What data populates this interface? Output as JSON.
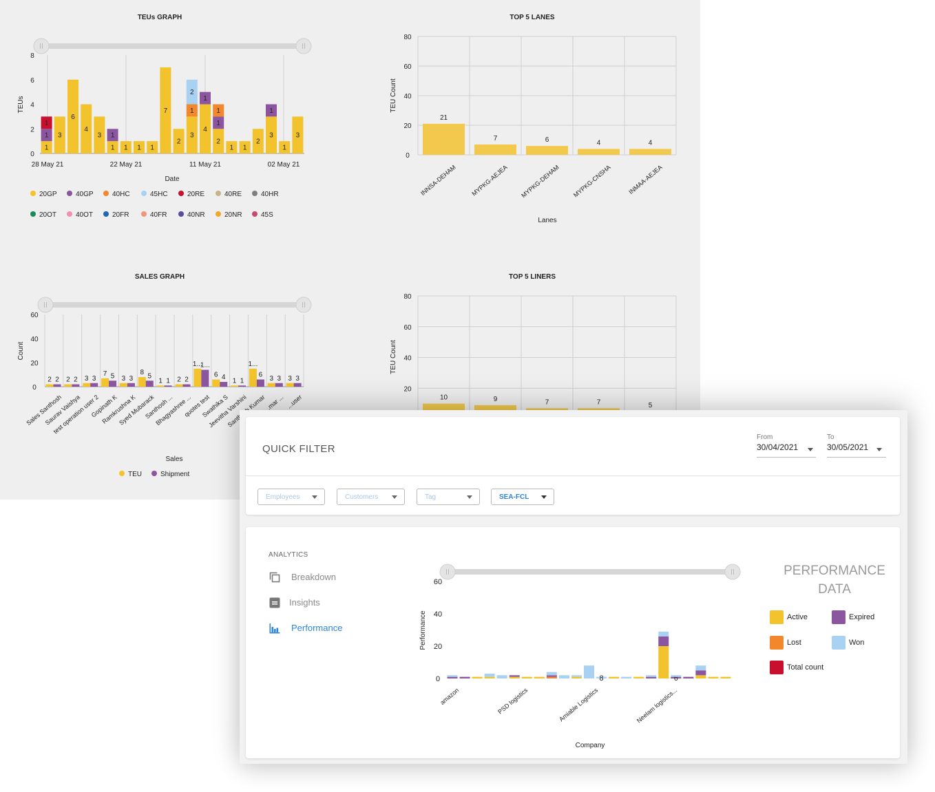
{
  "dashboard": {
    "teus_chart": {
      "title": "TEUs GRAPH",
      "xlabel": "Date",
      "ylabel": "TEUs",
      "yticks": [
        "0",
        "2",
        "4",
        "6",
        "8"
      ],
      "date_labels": [
        "28 May 21",
        "22 May 21",
        "11 May 21",
        "02 May 21"
      ],
      "legend_row1": [
        "20GP",
        "40GP",
        "40HC",
        "45HC",
        "20RE",
        "40RE",
        "40HR"
      ],
      "legend_row2": [
        "20OT",
        "40OT",
        "20FR",
        "40FR",
        "40NR",
        "20NR",
        "45S"
      ]
    },
    "lanes_chart": {
      "title": "TOP 5 LANES",
      "xlabel": "Lanes",
      "ylabel": "TEU Count",
      "yticks": [
        "0",
        "20",
        "40",
        "60",
        "80"
      ]
    },
    "sales_chart": {
      "title": "SALES GRAPH",
      "xlabel": "Sales",
      "ylabel": "Count",
      "yticks": [
        "0",
        "20",
        "40",
        "60"
      ],
      "legend": [
        "TEU",
        "Shipment"
      ]
    },
    "liners_chart": {
      "title": "TOP 5 LINERS",
      "ylabel": "TEU Count",
      "yticks": [
        "20",
        "40",
        "60",
        "80"
      ]
    }
  },
  "quick_filter": {
    "title": "QUICK FILTER",
    "from_label": "From",
    "from_value": "30/04/2021",
    "to_label": "To",
    "to_value": "30/05/2021",
    "dropdowns": [
      "Employees",
      "Customers",
      "Tag",
      "SEA-FCL"
    ]
  },
  "analytics": {
    "heading": "ANALYTICS",
    "nav": [
      {
        "label": "Breakdown",
        "icon": "copy-icon"
      },
      {
        "label": "Insights",
        "icon": "document-icon"
      },
      {
        "label": "Performance",
        "icon": "bar-chart-icon",
        "active": true
      }
    ],
    "performance_title_line1": "PERFORMANCE",
    "performance_title_line2": "DATA",
    "legend": [
      {
        "label": "Active",
        "color": "#f2c32c"
      },
      {
        "label": "Expired",
        "color": "#8b55a0"
      },
      {
        "label": "Lost",
        "color": "#f2872c"
      },
      {
        "label": "Won",
        "color": "#a9d1f2"
      },
      {
        "label": "Total count",
        "color": "#c8102e"
      }
    ]
  },
  "colors": {
    "20GP": "#f2c32c",
    "40GP": "#8b55a0",
    "40HC": "#f2872c",
    "45HC": "#a9d1f2",
    "20RE": "#c8102e",
    "40RE": "#c9b48a",
    "40HR": "#7f7f7f",
    "20OT": "#1a8a5a",
    "40OT": "#f28fb3",
    "20FR": "#1f66b3",
    "40FR": "#f2937c",
    "40NR": "#5b4a9e",
    "20NR": "#f2a72c",
    "45S": "#c44a6e"
  },
  "chart_data": [
    {
      "type": "bar",
      "title": "TEUs GRAPH",
      "xlabel": "Date",
      "ylabel": "TEUs",
      "ylim": [
        0,
        8
      ],
      "x_tick_labels": [
        "28 May 21",
        "22 May 21",
        "11 May 21",
        "02 May 21"
      ],
      "stacks": [
        [
          {
            "s": "20GP",
            "v": 1
          },
          {
            "s": "40GP",
            "v": 1
          },
          {
            "s": "20RE",
            "v": 1
          }
        ],
        [
          {
            "s": "20GP",
            "v": 3
          }
        ],
        [
          {
            "s": "20GP",
            "v": 6
          }
        ],
        [
          {
            "s": "20GP",
            "v": 4
          }
        ],
        [
          {
            "s": "20GP",
            "v": 3
          }
        ],
        [
          {
            "s": "20GP",
            "v": 1
          },
          {
            "s": "40GP",
            "v": 1
          }
        ],
        [
          {
            "s": "20GP",
            "v": 1
          }
        ],
        [
          {
            "s": "20GP",
            "v": 1
          }
        ],
        [
          {
            "s": "20GP",
            "v": 1
          }
        ],
        [
          {
            "s": "20GP",
            "v": 7
          }
        ],
        [
          {
            "s": "20GP",
            "v": 2
          }
        ],
        [
          {
            "s": "20GP",
            "v": 3
          },
          {
            "s": "40HC",
            "v": 1
          },
          {
            "s": "45HC",
            "v": 2
          }
        ],
        [
          {
            "s": "20GP",
            "v": 4
          },
          {
            "s": "40GP",
            "v": 1
          }
        ],
        [
          {
            "s": "20GP",
            "v": 2
          },
          {
            "s": "40GP",
            "v": 1
          },
          {
            "s": "40HC",
            "v": 1
          }
        ],
        [
          {
            "s": "20GP",
            "v": 1
          }
        ],
        [
          {
            "s": "20GP",
            "v": 1
          }
        ],
        [
          {
            "s": "20GP",
            "v": 2
          }
        ],
        [
          {
            "s": "20GP",
            "v": 3
          },
          {
            "s": "40GP",
            "v": 1
          }
        ],
        [
          {
            "s": "20GP",
            "v": 1
          }
        ],
        [
          {
            "s": "20GP",
            "v": 3
          }
        ]
      ],
      "legend": [
        "20GP",
        "40GP",
        "40HC",
        "45HC",
        "20RE",
        "40RE",
        "40HR",
        "20OT",
        "40OT",
        "20FR",
        "40FR",
        "40NR",
        "20NR",
        "45S"
      ]
    },
    {
      "type": "bar",
      "title": "TOP 5 LANES",
      "xlabel": "Lanes",
      "ylabel": "TEU Count",
      "ylim": [
        0,
        80
      ],
      "categories": [
        "INNSA-DEHAM",
        "MYPKG-AEJEA",
        "MYPKG-DEHAM",
        "MYPKG-CNSHA",
        "INMAA-AEJEA"
      ],
      "values": [
        21,
        7,
        6,
        4,
        4
      ]
    },
    {
      "type": "bar",
      "title": "SALES GRAPH",
      "xlabel": "Sales",
      "ylabel": "Count",
      "ylim": [
        0,
        60
      ],
      "categories": [
        "Sales Santhosh",
        "Saurav Vaishya",
        "test operation user 2",
        "Gopinath K",
        "Ramkrushna K",
        "Syed Mubarack",
        "Santhosh ...",
        "Bhagyashree ...",
        "quotes test",
        "Swathika S",
        "Jeevitha Varshini",
        "Santhosh Kumar",
        "...mar ...",
        "...user"
      ],
      "series": [
        {
          "name": "TEU",
          "values": [
            2,
            2,
            3,
            7,
            3,
            8,
            1,
            2,
            15,
            6,
            1,
            15,
            3,
            3
          ]
        },
        {
          "name": "Shipment",
          "values": [
            2,
            2,
            3,
            5,
            3,
            5,
            1,
            2,
            14,
            4,
            1,
            6,
            3,
            3
          ]
        }
      ],
      "data_labels": {
        "TEU": [
          "2",
          "2",
          "3",
          "7",
          "3",
          "8",
          "1",
          "2",
          "1...",
          "6",
          "1",
          "1...",
          "3",
          "3"
        ],
        "Shipment": [
          "2",
          "2",
          "3",
          "5",
          "3",
          "5",
          "1",
          "2",
          "1...",
          "4",
          "1",
          "6",
          "3",
          "3"
        ]
      }
    },
    {
      "type": "bar",
      "title": "TOP 5 LINERS",
      "ylabel": "TEU Count",
      "ylim": [
        0,
        80
      ],
      "values": [
        10,
        9,
        7,
        7,
        5
      ]
    },
    {
      "type": "bar",
      "title": "PERFORMANCE DATA",
      "xlabel": "Company",
      "ylabel": "Performance",
      "ylim": [
        0,
        60
      ],
      "yticks": [
        "0",
        "20",
        "40",
        "60"
      ],
      "x_tick_labels": [
        "amazon",
        "PSD logistics",
        "Amiable Logistics",
        "Neelam logistics..."
      ],
      "stacks": [
        [
          {
            "s": "Expired",
            "v": 1
          },
          {
            "s": "Won",
            "v": 1
          }
        ],
        [
          {
            "s": "Expired",
            "v": 1
          }
        ],
        [
          {
            "s": "Active",
            "v": 1
          }
        ],
        [
          {
            "s": "Active",
            "v": 1
          },
          {
            "s": "Won",
            "v": 2
          }
        ],
        [
          {
            "s": "Won",
            "v": 2
          }
        ],
        [
          {
            "s": "Active",
            "v": 1
          },
          {
            "s": "Expired",
            "v": 1
          }
        ],
        [
          {
            "s": "Active",
            "v": 1
          }
        ],
        [
          {
            "s": "Active",
            "v": 1
          }
        ],
        [
          {
            "s": "Lost",
            "v": 1
          },
          {
            "s": "Expired",
            "v": 1
          },
          {
            "s": "Won",
            "v": 2
          }
        ],
        [
          {
            "s": "Won",
            "v": 2
          }
        ],
        [
          {
            "s": "Active",
            "v": 1
          },
          {
            "s": "Won",
            "v": 1
          }
        ],
        [
          {
            "s": "Won",
            "v": 8
          }
        ],
        [
          {
            "s": "Won",
            "v": 1
          }
        ],
        [
          {
            "s": "Active",
            "v": 1
          }
        ],
        [
          {
            "s": "Won",
            "v": 1
          }
        ],
        [
          {
            "s": "Active",
            "v": 1
          }
        ],
        [
          {
            "s": "Expired",
            "v": 1
          },
          {
            "s": "Won",
            "v": 1
          }
        ],
        [
          {
            "s": "Active",
            "v": 20
          },
          {
            "s": "Expired",
            "v": 6
          },
          {
            "s": "Won",
            "v": 3
          }
        ],
        [
          {
            "s": "Expired",
            "v": 1
          },
          {
            "s": "Won",
            "v": 1
          }
        ],
        [
          {
            "s": "Expired",
            "v": 1
          }
        ],
        [
          {
            "s": "Active",
            "v": 2
          },
          {
            "s": "Expired",
            "v": 3
          },
          {
            "s": "Won",
            "v": 3
          }
        ],
        [
          {
            "s": "Active",
            "v": 1
          }
        ],
        [
          {
            "s": "Active",
            "v": 1
          }
        ]
      ],
      "labeled_values": {
        "stack_12_Won": "8",
        "stack_18_Active": "20",
        "stack_18_Expired": "6"
      },
      "legend": [
        "Active",
        "Expired",
        "Lost",
        "Won",
        "Total count"
      ]
    }
  ]
}
